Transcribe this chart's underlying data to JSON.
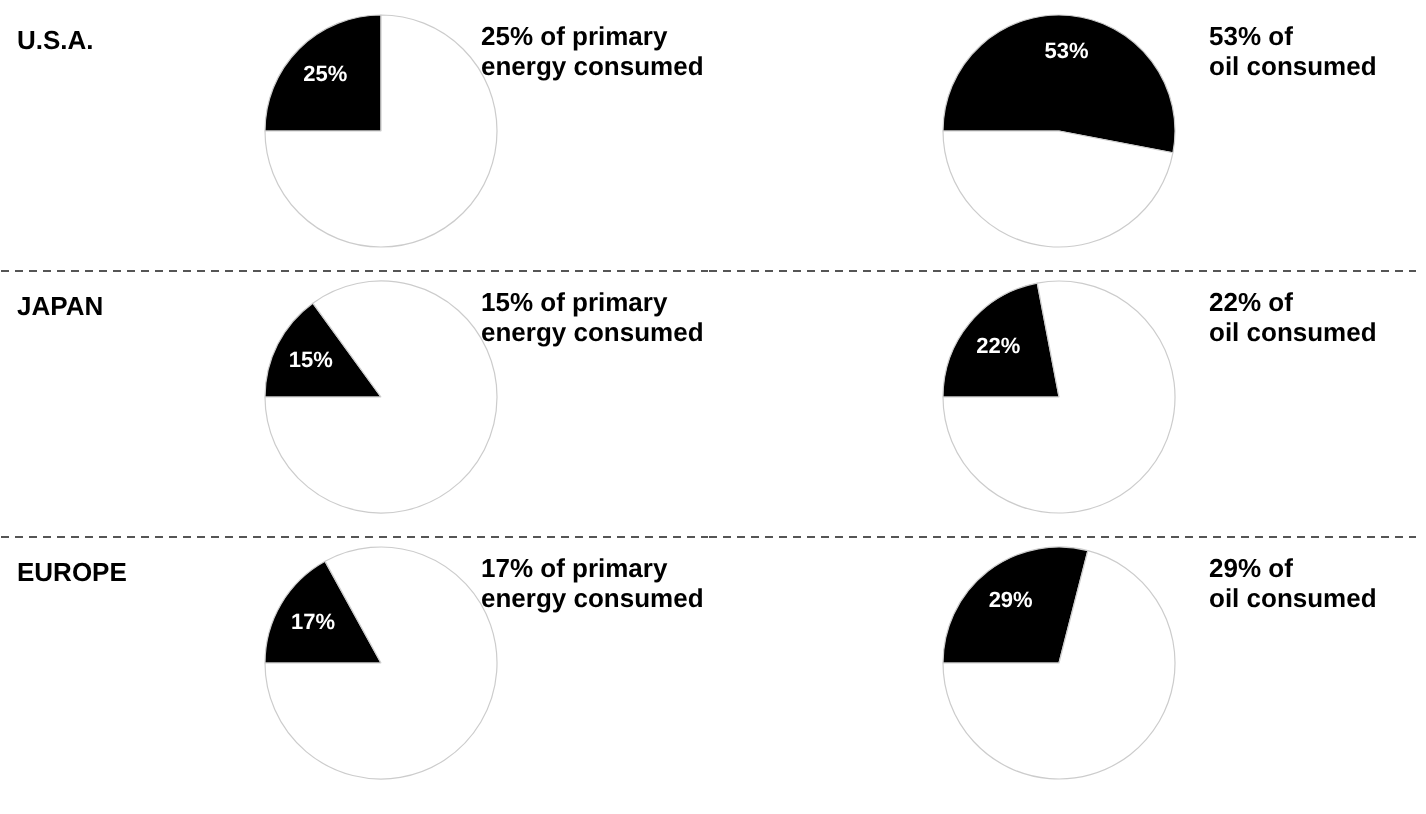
{
  "chart_data": [
    {
      "type": "pie",
      "title": "U.S.A.",
      "categories": [
        null,
        null
      ],
      "values": [
        25,
        75
      ],
      "colors": [
        "#000000",
        "#ffffff"
      ],
      "value_labels": [
        "25%",
        null
      ],
      "annotations": [
        "25% of primary energy consumed"
      ]
    },
    {
      "type": "pie",
      "categories": [
        null,
        null
      ],
      "values": [
        53,
        47
      ],
      "colors": [
        "#000000",
        "#ffffff"
      ],
      "value_labels": [
        "53%",
        null
      ],
      "annotations": [
        "53% of oil consumed"
      ]
    },
    {
      "type": "pie",
      "title": "JAPAN",
      "categories": [
        null,
        null
      ],
      "values": [
        15,
        85
      ],
      "colors": [
        "#000000",
        "#ffffff"
      ],
      "value_labels": [
        "15%",
        null
      ],
      "annotations": [
        "15% of primary energy consumed"
      ]
    },
    {
      "type": "pie",
      "categories": [
        null,
        null
      ],
      "values": [
        22,
        78
      ],
      "colors": [
        "#000000",
        "#ffffff"
      ],
      "value_labels": [
        "22%",
        null
      ],
      "annotations": [
        "22% of oil consumed"
      ]
    },
    {
      "type": "pie",
      "title": "EUROPE",
      "categories": [
        null,
        null
      ],
      "values": [
        17,
        83
      ],
      "colors": [
        "#000000",
        "#ffffff"
      ],
      "value_labels": [
        "17%",
        null
      ],
      "annotations": [
        "17% of primary energy consumed"
      ]
    },
    {
      "type": "pie",
      "categories": [
        null,
        null
      ],
      "values": [
        29,
        71
      ],
      "colors": [
        "#000000",
        "#ffffff"
      ],
      "value_labels": [
        "29%",
        null
      ],
      "annotations": [
        "29% of oil consumed"
      ]
    }
  ]
}
